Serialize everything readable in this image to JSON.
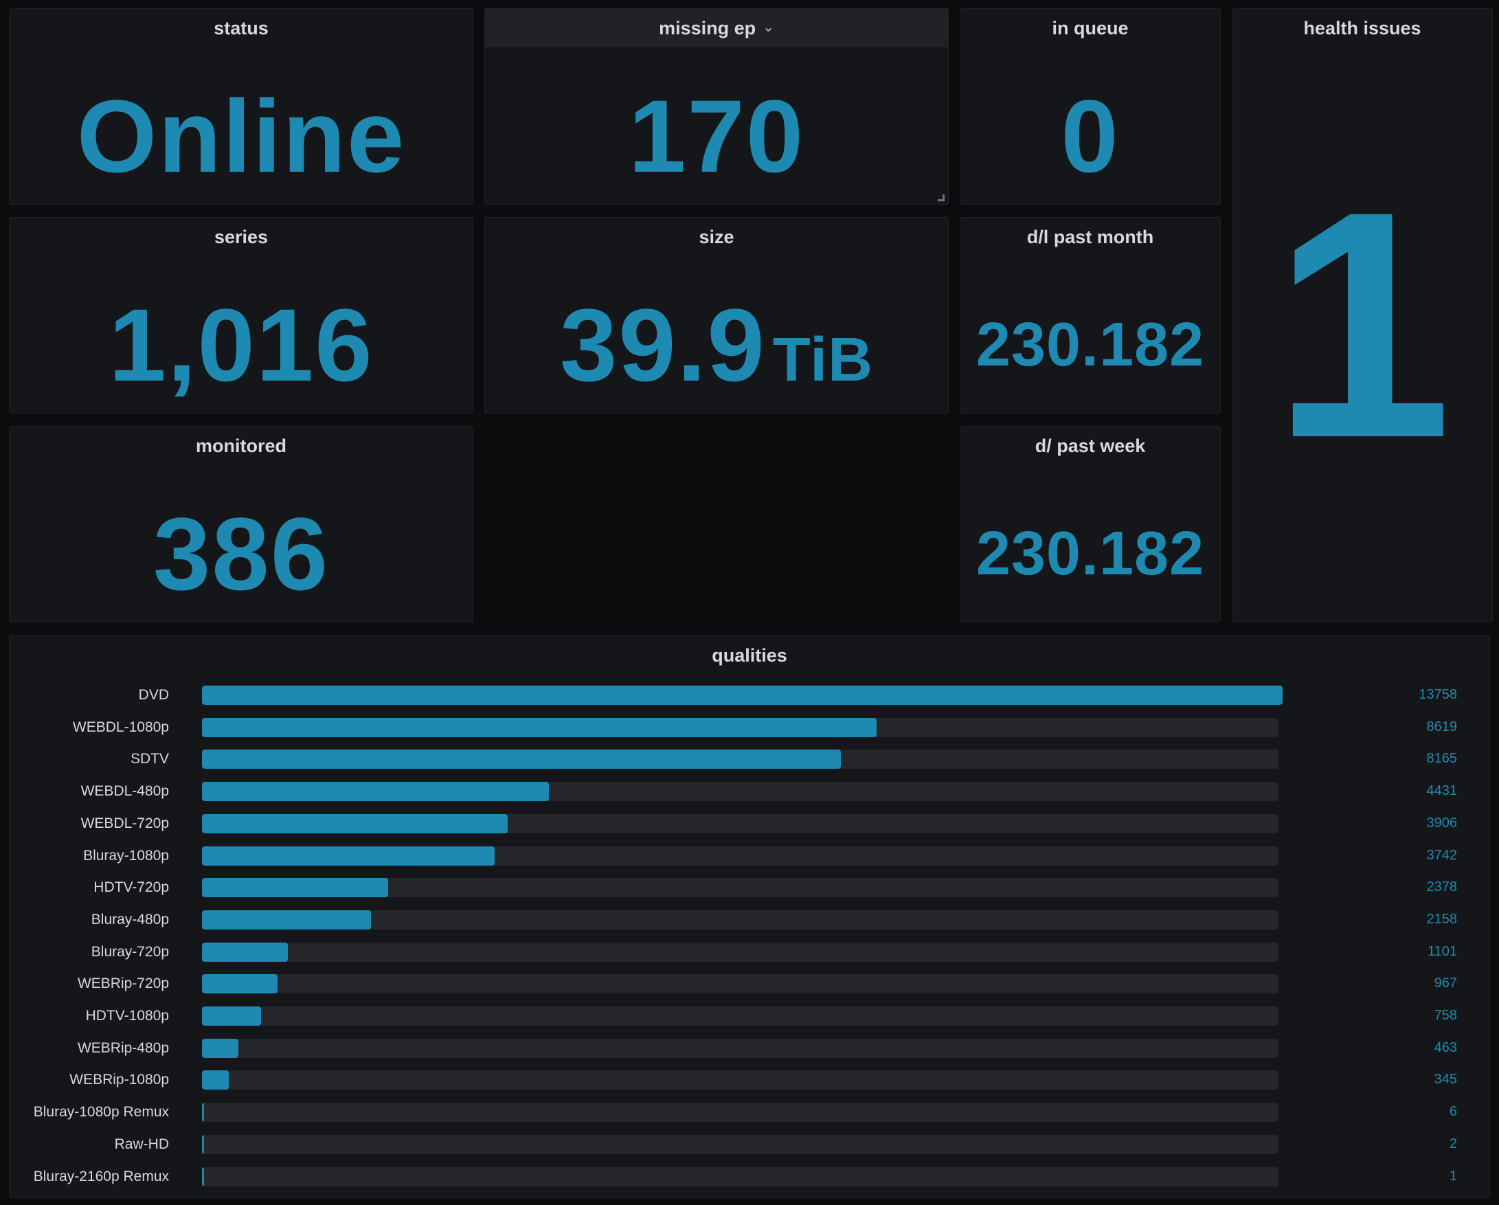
{
  "colors": {
    "accent": "#1f8ab1",
    "panel_bg": "#141619",
    "page_bg": "#0b0c0e",
    "track": "#25272b"
  },
  "panels": {
    "status": {
      "title": "status",
      "value": "Online"
    },
    "missing_ep": {
      "title": "missing ep",
      "value": "170",
      "menu_icon": "chevron-down-icon"
    },
    "in_queue": {
      "title": "in queue",
      "value": "0"
    },
    "health_issues": {
      "title": "health issues",
      "value": "1"
    },
    "series": {
      "title": "series",
      "value": "1,016"
    },
    "size": {
      "title": "size",
      "value": "39.9",
      "unit": "TiB"
    },
    "dl_past_month": {
      "title": "d/l past month",
      "value": "230.182"
    },
    "monitored": {
      "title": "monitored",
      "value": "386"
    },
    "dl_past_week": {
      "title": "d/ past week",
      "value": "230.182"
    }
  },
  "qualities": {
    "title": "qualities",
    "chart_data": {
      "type": "bar",
      "orientation": "horizontal",
      "categories": [
        "DVD",
        "WEBDL-1080p",
        "SDTV",
        "WEBDL-480p",
        "WEBDL-720p",
        "Bluray-1080p",
        "HDTV-720p",
        "Bluray-480p",
        "Bluray-720p",
        "WEBRip-720p",
        "HDTV-1080p",
        "WEBRip-480p",
        "WEBRip-1080p",
        "Bluray-1080p Remux",
        "Raw-HD",
        "Bluray-2160p Remux"
      ],
      "values": [
        13758,
        8619,
        8165,
        4431,
        3906,
        3742,
        2378,
        2158,
        1101,
        967,
        758,
        463,
        345,
        6,
        2,
        1
      ],
      "max": 13758
    }
  }
}
